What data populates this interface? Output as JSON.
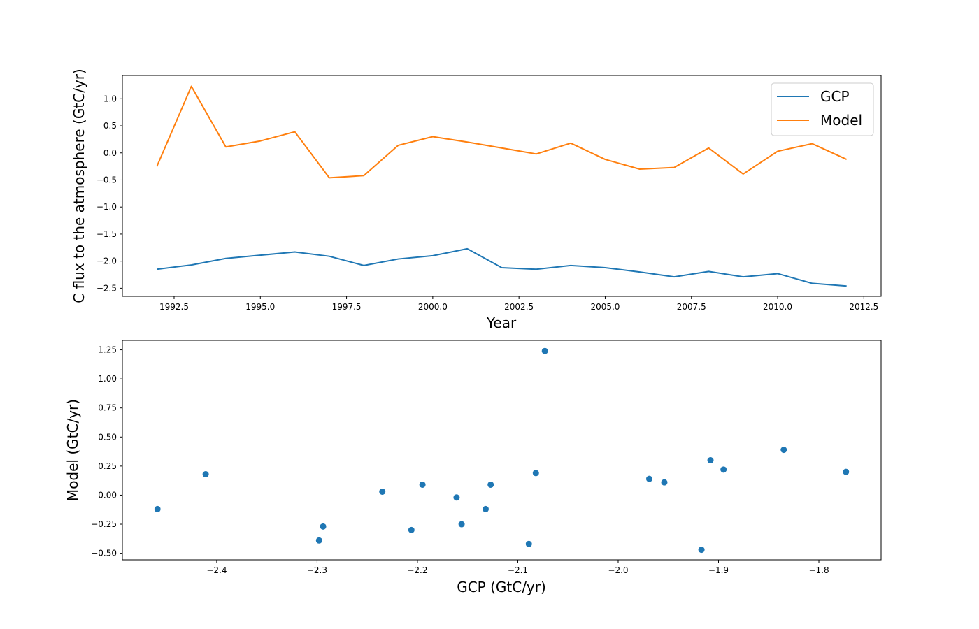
{
  "chart_data": [
    {
      "type": "line",
      "xlabel": "Year",
      "ylabel": "C flux to the atmosphere (GtC/yr)",
      "xlim": [
        1991,
        2013
      ],
      "ylim": [
        -2.65,
        1.43
      ],
      "x_ticks": [
        1992.5,
        1995.0,
        1997.5,
        2000.0,
        2002.5,
        2005.0,
        2007.5,
        2010.0,
        2012.5
      ],
      "x_tick_labels": [
        "1992.5",
        "1995.0",
        "1997.5",
        "2000.0",
        "2002.5",
        "2005.0",
        "2007.5",
        "2010.0",
        "2012.5"
      ],
      "y_ticks": [
        -2.5,
        -2.0,
        -1.5,
        -1.0,
        -0.5,
        0.0,
        0.5,
        1.0
      ],
      "y_tick_labels": [
        "−2.5",
        "−2.0",
        "−1.5",
        "−1.0",
        "−0.5",
        "0.0",
        "0.5",
        "1.0"
      ],
      "grid": false,
      "legend": "top-right",
      "x": [
        1992,
        1993,
        1994,
        1995,
        1996,
        1997,
        1998,
        1999,
        2000,
        2001,
        2002,
        2003,
        2004,
        2005,
        2006,
        2007,
        2008,
        2009,
        2010,
        2011,
        2012
      ],
      "series": [
        {
          "name": "GCP",
          "color": "#1f77b4",
          "values": [
            -2.15,
            -2.07,
            -1.95,
            -1.89,
            -1.83,
            -1.91,
            -2.08,
            -1.96,
            -1.9,
            -1.77,
            -2.12,
            -2.15,
            -2.08,
            -2.12,
            -2.2,
            -2.29,
            -2.19,
            -2.29,
            -2.23,
            -2.41,
            -2.46
          ]
        },
        {
          "name": "Model",
          "color": "#ff7f0e",
          "values": [
            -0.25,
            1.23,
            0.11,
            0.22,
            0.39,
            -0.46,
            -0.42,
            0.14,
            0.3,
            0.2,
            0.09,
            -0.02,
            0.18,
            -0.12,
            -0.3,
            -0.27,
            0.09,
            -0.39,
            0.03,
            0.17,
            -0.12
          ]
        }
      ]
    },
    {
      "type": "scatter",
      "xlabel": "GCP (GtC/yr)",
      "ylabel": "Model (GtC/yr)",
      "xlim": [
        -2.494,
        -1.738
      ],
      "ylim": [
        -0.5565,
        1.3315
      ],
      "x_ticks": [
        -2.4,
        -2.3,
        -2.2,
        -2.1,
        -2.0,
        -1.9,
        -1.8
      ],
      "x_tick_labels": [
        "−2.4",
        "−2.3",
        "−2.2",
        "−2.1",
        "−2.0",
        "−1.9",
        "−1.8"
      ],
      "y_ticks": [
        -0.5,
        -0.25,
        0.0,
        0.25,
        0.5,
        0.75,
        1.0,
        1.25
      ],
      "y_tick_labels": [
        "−0.50",
        "−0.25",
        "0.00",
        "0.25",
        "0.50",
        "0.75",
        "1.00",
        "1.25"
      ],
      "grid": false,
      "color": "#1f77b4",
      "points": [
        {
          "x": -2.459,
          "y": -0.12
        },
        {
          "x": -2.411,
          "y": 0.18
        },
        {
          "x": -2.298,
          "y": -0.39
        },
        {
          "x": -2.294,
          "y": -0.27
        },
        {
          "x": -2.235,
          "y": 0.03
        },
        {
          "x": -2.206,
          "y": -0.3
        },
        {
          "x": -2.195,
          "y": 0.09
        },
        {
          "x": -2.161,
          "y": -0.02
        },
        {
          "x": -2.156,
          "y": -0.25
        },
        {
          "x": -2.132,
          "y": -0.12
        },
        {
          "x": -2.127,
          "y": 0.09
        },
        {
          "x": -2.089,
          "y": -0.42
        },
        {
          "x": -2.082,
          "y": 0.19
        },
        {
          "x": -2.073,
          "y": 1.24
        },
        {
          "x": -1.969,
          "y": 0.14
        },
        {
          "x": -1.954,
          "y": 0.11
        },
        {
          "x": -1.917,
          "y": -0.47
        },
        {
          "x": -1.908,
          "y": 0.3
        },
        {
          "x": -1.895,
          "y": 0.22
        },
        {
          "x": -1.835,
          "y": 0.39
        },
        {
          "x": -1.773,
          "y": 0.2
        }
      ]
    }
  ]
}
